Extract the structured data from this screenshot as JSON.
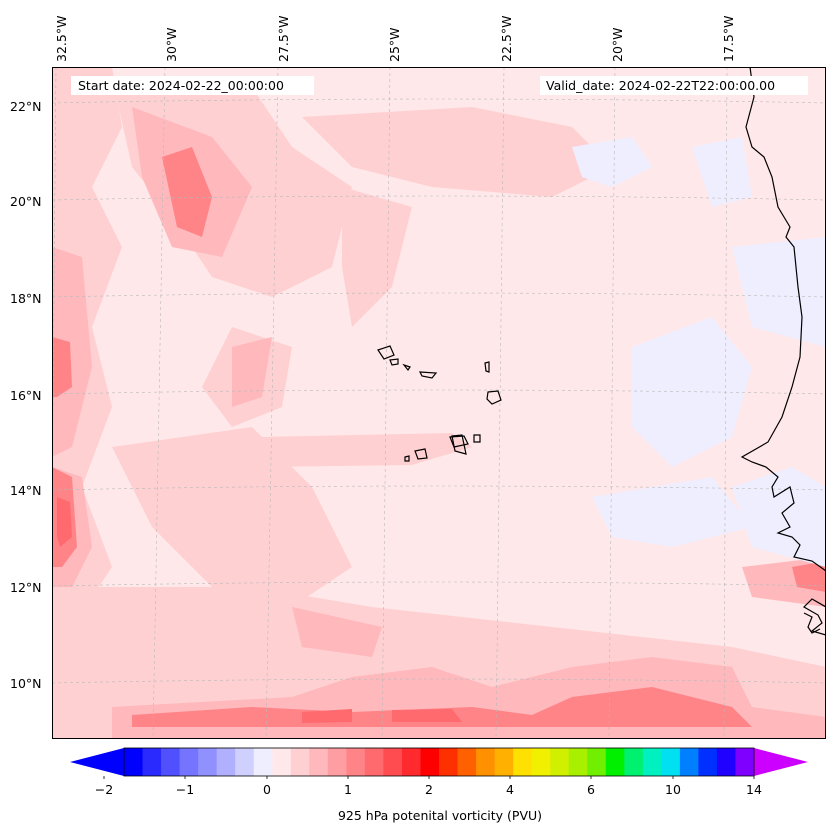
{
  "header": {
    "start_date": "Start date: 2024-02-22_00:00:00",
    "valid_date": "Valid_date: 2024-02-22T22:00:00.00"
  },
  "axes": {
    "lon_labels": [
      "32.5°W",
      "30°W",
      "27.5°W",
      "25°W",
      "22.5°W",
      "20°W",
      "17.5°W"
    ],
    "lat_labels": [
      "22°N",
      "20°N",
      "18°N",
      "16°N",
      "14°N",
      "12°N",
      "10°N"
    ]
  },
  "colorbar": {
    "label": "925 hPa potenital vorticity (PVU)",
    "ticks": [
      "−2",
      "−1",
      "0",
      "1",
      "2",
      "4",
      "6",
      "10",
      "14"
    ],
    "colors": [
      "#0000ff",
      "#2a2aff",
      "#5050ff",
      "#7474ff",
      "#9090ff",
      "#b0b0ff",
      "#d0d0ff",
      "#eeeeff",
      "#ffe8ea",
      "#ffd0d2",
      "#ffb8bc",
      "#ff9ea2",
      "#ff8488",
      "#ff6a6e",
      "#ff4c50",
      "#ff2a2e",
      "#ff0000",
      "#ff3000",
      "#ff6000",
      "#ff9000",
      "#ffb000",
      "#ffe000",
      "#f0f000",
      "#d0f000",
      "#a8f000",
      "#70f000",
      "#00f000",
      "#00f070",
      "#00f0c0",
      "#00e0f0",
      "#0080ff",
      "#0030ff",
      "#2000ff",
      "#8000ff"
    ],
    "arrow_low": "#0000ff",
    "arrow_high": "#cc00ff"
  },
  "map": {
    "background_color": "#ffe8ea",
    "coast_color": "#000000"
  }
}
